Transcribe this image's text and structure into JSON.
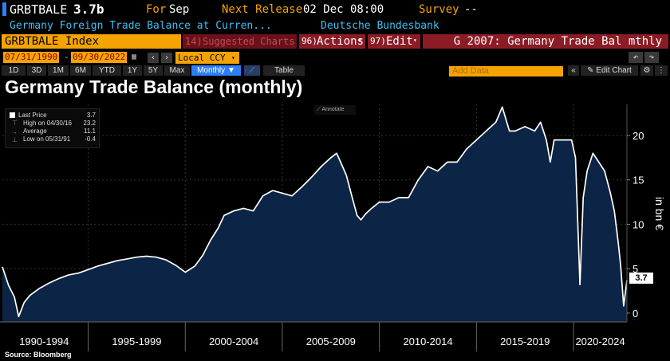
{
  "header": {
    "ticker": "GRBTBALE",
    "value": "3.7b",
    "for_label": "For",
    "for_value": "Sep",
    "next_release_label": "Next Release",
    "next_release_value": "02 Dec 08:00",
    "survey_label": "Survey",
    "survey_value": "--",
    "description": "Germany Foreign Trade Balance at Curren...",
    "source": "Deutsche Bundesbank"
  },
  "toolbar": {
    "security": "GRBTBALE Index",
    "suggested": "Suggested Charts",
    "actions": "Actions",
    "actions_num": "96)",
    "edit": "Edit",
    "edit_num": "97)",
    "chart_name": "G 2007: Germany Trade Bal mthly",
    "start_date": "07/31/1990",
    "end_date": "09/30/2022",
    "currency": "Local CCY",
    "periods": [
      "1D",
      "3D",
      "1M",
      "6M",
      "YTD",
      "1Y",
      "5Y",
      "Max"
    ],
    "frequency": "Monthly",
    "table": "Table",
    "add_data": "Add Data",
    "edit_chart": "Edit Chart"
  },
  "legend": {
    "last_price_label": "Last Price",
    "last_price": "3.7",
    "high_label": "High on 04/30/16",
    "high": "23.2",
    "average_label": "Average",
    "average": "11.1",
    "low_label": "Low on 05/31/91",
    "low": "-0.4",
    "annotate": "Annotate"
  },
  "colors": {
    "accent": "#f5a300",
    "fill": "#0c2445",
    "line": "#ffffff"
  },
  "chart_data": {
    "type": "area",
    "title": "Germany Trade Balance (monthly)",
    "ylabel": "in bn €",
    "ylim": [
      -1,
      23.5
    ],
    "yticks": [
      0,
      5,
      10,
      15,
      20
    ],
    "last_value_label": "3.7",
    "x_start": 1990.58,
    "x_end": 2022.75,
    "x_categories": [
      "1990-1994",
      "1995-1999",
      "2000-2004",
      "2005-2009",
      "2010-2014",
      "2015-2019",
      "2020-2024"
    ],
    "x_boundaries": [
      1995,
      2000,
      2005,
      2010,
      2015,
      2020
    ],
    "x": [
      1990.58,
      1990.9,
      1991.2,
      1991.42,
      1991.7,
      1992.0,
      1992.5,
      1993.0,
      1993.5,
      1994.0,
      1994.5,
      1995.0,
      1995.5,
      1996.0,
      1996.5,
      1997.0,
      1997.5,
      1998.0,
      1998.5,
      1999.0,
      1999.5,
      2000.0,
      2000.5,
      2000.9,
      2001.3,
      2001.7,
      2002.0,
      2002.5,
      2003.0,
      2003.5,
      2004.0,
      2004.5,
      2005.0,
      2005.5,
      2006.0,
      2006.5,
      2007.0,
      2007.5,
      2007.8,
      2008.0,
      2008.3,
      2008.6,
      2008.85,
      2009.05,
      2009.3,
      2009.6,
      2010.0,
      2010.5,
      2011.0,
      2011.5,
      2012.0,
      2012.5,
      2013.0,
      2013.5,
      2014.0,
      2014.5,
      2015.0,
      2015.5,
      2016.0,
      2016.33,
      2016.7,
      2017.0,
      2017.5,
      2018.0,
      2018.3,
      2018.6,
      2018.8,
      2019.0,
      2019.5,
      2019.9,
      2020.1,
      2020.33,
      2020.5,
      2020.7,
      2021.0,
      2021.3,
      2021.6,
      2021.9,
      2022.1,
      2022.3,
      2022.42,
      2022.58,
      2022.75
    ],
    "y": [
      5.2,
      3.1,
      1.8,
      -0.4,
      1.2,
      2.0,
      2.8,
      3.4,
      3.9,
      4.3,
      4.5,
      4.9,
      5.3,
      5.6,
      5.9,
      6.1,
      6.3,
      6.4,
      6.3,
      6.0,
      5.4,
      4.6,
      5.3,
      6.5,
      8.2,
      9.6,
      11.0,
      11.5,
      11.8,
      11.5,
      13.2,
      13.8,
      13.5,
      13.2,
      14.2,
      15.3,
      16.5,
      17.5,
      18.0,
      17.0,
      15.5,
      13.0,
      11.0,
      10.5,
      11.2,
      11.8,
      12.5,
      12.5,
      13.0,
      13.0,
      15.0,
      16.5,
      16.0,
      17.0,
      17.0,
      18.5,
      19.5,
      20.5,
      21.5,
      23.2,
      20.5,
      20.5,
      21.0,
      20.5,
      21.5,
      19.5,
      17.0,
      19.5,
      19.5,
      19.5,
      17.5,
      3.2,
      13.0,
      16.0,
      18.0,
      17.0,
      16.0,
      13.5,
      11.5,
      8.0,
      5.5,
      0.8,
      3.7
    ]
  }
}
